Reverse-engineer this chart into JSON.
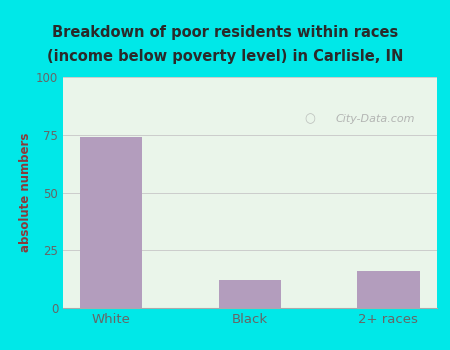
{
  "categories": [
    "White",
    "Black",
    "2+ races"
  ],
  "values": [
    74,
    12,
    16
  ],
  "bar_color": "#b39dbd",
  "title_line1": "Breakdown of poor residents within races",
  "title_line2": "(income below poverty level) in Carlisle, IN",
  "ylabel": "absolute numbers",
  "ylim": [
    0,
    100
  ],
  "yticks": [
    0,
    25,
    50,
    75,
    100
  ],
  "background_outer": "#00e8e8",
  "title_color": "#2a2a2a",
  "label_color": "#8b3a3a",
  "tick_color": "#666666",
  "grid_color": "#cccccc",
  "watermark_text": "City-Data.com",
  "watermark_color": "#aaaaaa",
  "plot_bg_top": "#f0faf0",
  "plot_bg_bottom": "#e0f5e8"
}
